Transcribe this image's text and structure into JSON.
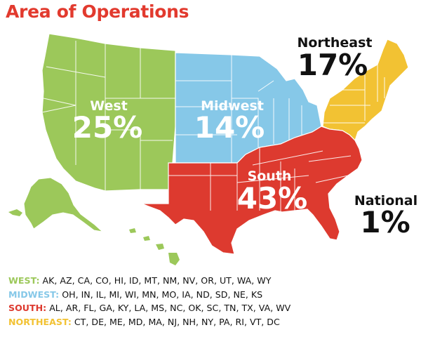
{
  "title": "Area of Operations",
  "colors": {
    "west": "#9cc85a",
    "midwest": "#86c8e8",
    "south": "#dd3a2f",
    "northeast": "#f2c233",
    "title": "#e23a2e",
    "border": "#ffffff"
  },
  "map": {
    "regions": [
      {
        "id": "west",
        "name": "West",
        "percent": "25%",
        "value": 25
      },
      {
        "id": "midwest",
        "name": "Midwest",
        "percent": "14%",
        "value": 14
      },
      {
        "id": "south",
        "name": "South",
        "percent": "43%",
        "value": 43
      },
      {
        "id": "northeast",
        "name": "Northeast",
        "percent": "17%",
        "value": 17
      }
    ],
    "national": {
      "name": "National",
      "percent": "1%",
      "value": 1
    }
  },
  "legend": [
    {
      "key": "WEST:",
      "states": "AK, AZ, CA, CO, HI, ID, MT, NM, NV, OR, UT, WA, WY",
      "color": "#9cc85a"
    },
    {
      "key": "MIDWEST:",
      "states": "OH, IN, IL, MI, WI, MN, MO, IA, ND, SD, NE, KS",
      "color": "#86c8e8"
    },
    {
      "key": "SOUTH:",
      "states": "AL, AR, FL, GA, KY, LA, MS, NC, OK, SC, TN, TX, VA, WV",
      "color": "#dd3a2f"
    },
    {
      "key": "NORTHEAST:",
      "states": "CT, DE, ME, MD, MA, NJ, NH, NY, PA, RI, VT, DC",
      "color": "#f2c233"
    }
  ]
}
